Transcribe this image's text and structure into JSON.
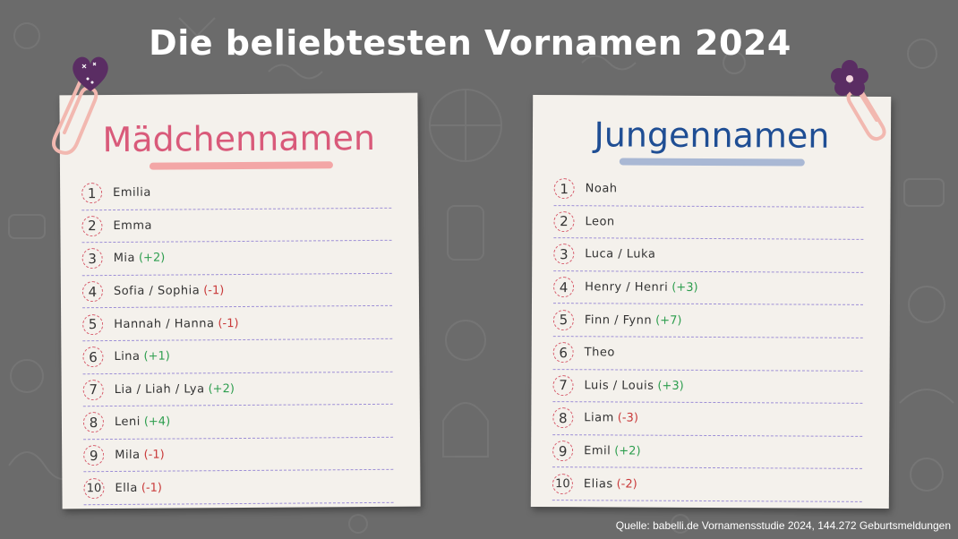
{
  "title": "Die beliebtesten Vornamen 2024",
  "colors": {
    "background": "#6b6b6b",
    "card": "#f4f1ec",
    "girls_accent": "#d95a7a",
    "boys_accent": "#1f4e94",
    "up": "#2e9e4f",
    "down": "#c93a3a"
  },
  "girls": {
    "heading": "Mädchennamen",
    "items": [
      {
        "rank": "1",
        "name": "Emilia",
        "change": ""
      },
      {
        "rank": "2",
        "name": "Emma",
        "change": ""
      },
      {
        "rank": "3",
        "name": "Mia",
        "change": "(+2)"
      },
      {
        "rank": "4",
        "name": "Sofia / Sophia",
        "change": "(-1)"
      },
      {
        "rank": "5",
        "name": "Hannah / Hanna",
        "change": "(-1)"
      },
      {
        "rank": "6",
        "name": "Lina",
        "change": "(+1)"
      },
      {
        "rank": "7",
        "name": "Lia / Liah / Lya",
        "change": "(+2)"
      },
      {
        "rank": "8",
        "name": "Leni",
        "change": "(+4)"
      },
      {
        "rank": "9",
        "name": "Mila",
        "change": "(-1)"
      },
      {
        "rank": "10",
        "name": "Ella",
        "change": "(-1)"
      }
    ]
  },
  "boys": {
    "heading": "Jungennamen",
    "items": [
      {
        "rank": "1",
        "name": "Noah",
        "change": ""
      },
      {
        "rank": "2",
        "name": "Leon",
        "change": ""
      },
      {
        "rank": "3",
        "name": "Luca / Luka",
        "change": ""
      },
      {
        "rank": "4",
        "name": "Henry / Henri",
        "change": "(+3)"
      },
      {
        "rank": "5",
        "name": "Finn / Fynn",
        "change": "(+7)"
      },
      {
        "rank": "6",
        "name": "Theo",
        "change": ""
      },
      {
        "rank": "7",
        "name": "Luis / Louis",
        "change": "(+3)"
      },
      {
        "rank": "8",
        "name": "Liam",
        "change": "(-3)"
      },
      {
        "rank": "9",
        "name": "Emil",
        "change": "(+2)"
      },
      {
        "rank": "10",
        "name": "Elias",
        "change": "(-2)"
      }
    ]
  },
  "source": "Quelle: babelli.de Vornamensstudie 2024, 144.272 Geburtsmeldungen"
}
